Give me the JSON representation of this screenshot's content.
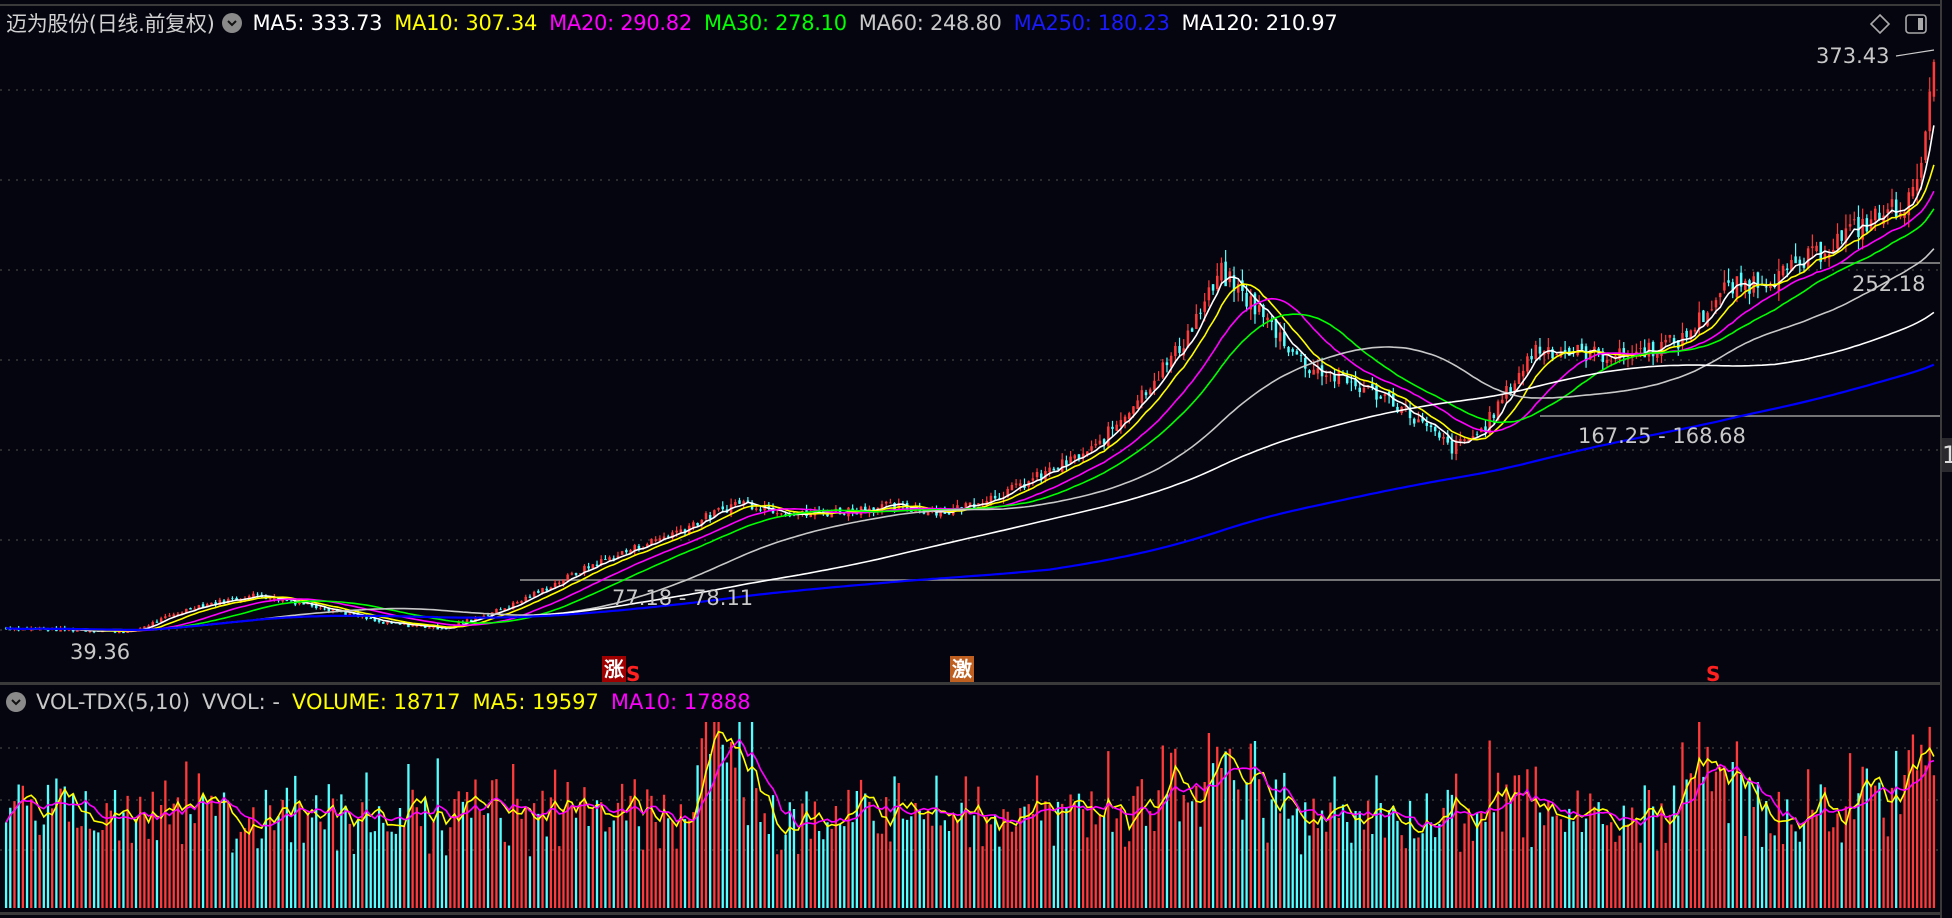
{
  "header": {
    "title": "迈为股份(日线.前复权)",
    "indicators": [
      {
        "label": "MA5: 333.73",
        "color": "#ffffff"
      },
      {
        "label": "MA10: 307.34",
        "color": "#ffff00"
      },
      {
        "label": "MA20: 290.82",
        "color": "#ff00ff"
      },
      {
        "label": "MA30: 278.10",
        "color": "#00ff00"
      },
      {
        "label": "MA60: 248.80",
        "color": "#c8c8c8"
      },
      {
        "label": "MA250: 180.23",
        "color": "#0000ff"
      },
      {
        "label": "MA120: 210.97",
        "color": "#ffffff"
      }
    ],
    "tools": {
      "diamond_icon": "diamond-icon",
      "panel_icon": "panel-toggle-icon"
    }
  },
  "annotations": {
    "high_price": "373.43",
    "low_price": "39.36",
    "range_1": "77.18 - 78.11",
    "range_2": "167.25 - 168.68",
    "range_3": "252.18",
    "axis_tag": "1"
  },
  "markers": [
    {
      "text": "涨",
      "bg": "#a00000"
    },
    {
      "text": "S",
      "color": "#ff2020"
    },
    {
      "text": "激",
      "bg": "#c06020"
    },
    {
      "text": "S",
      "color": "#ff2020"
    }
  ],
  "volume": {
    "indicator_name": "VOL-TDX(5,10)",
    "vvol": "VVOL: -",
    "items": [
      {
        "label": "VOLUME: 18717",
        "color": "#ffff00"
      },
      {
        "label": "MA5: 19597",
        "color": "#ffff00"
      },
      {
        "label": "MA10: 17888",
        "color": "#ff00ff"
      }
    ]
  },
  "colors": {
    "up": "#ff3a3a",
    "down": "#54ffff",
    "background": "#05050f",
    "grid": "#3a3a3a"
  },
  "chart_data": {
    "type": "candlestick",
    "title": "迈为股份(日线.前复权)",
    "x_range": "daily bars, ~400 trading days",
    "price_path_keypoints": [
      {
        "i": 0,
        "price": 42
      },
      {
        "i": 30,
        "price": 40
      },
      {
        "i": 45,
        "price": 55
      },
      {
        "i": 60,
        "price": 62
      },
      {
        "i": 75,
        "price": 55
      },
      {
        "i": 90,
        "price": 45
      },
      {
        "i": 105,
        "price": 42
      },
      {
        "i": 120,
        "price": 55
      },
      {
        "i": 140,
        "price": 80
      },
      {
        "i": 160,
        "price": 100
      },
      {
        "i": 175,
        "price": 118
      },
      {
        "i": 190,
        "price": 110
      },
      {
        "i": 210,
        "price": 115
      },
      {
        "i": 225,
        "price": 112
      },
      {
        "i": 240,
        "price": 125
      },
      {
        "i": 260,
        "price": 150
      },
      {
        "i": 280,
        "price": 210
      },
      {
        "i": 290,
        "price": 255
      },
      {
        "i": 298,
        "price": 235
      },
      {
        "i": 310,
        "price": 200
      },
      {
        "i": 330,
        "price": 180
      },
      {
        "i": 345,
        "price": 150
      },
      {
        "i": 352,
        "price": 160
      },
      {
        "i": 365,
        "price": 210
      },
      {
        "i": 385,
        "price": 205
      },
      {
        "i": 400,
        "price": 215
      },
      {
        "i": 410,
        "price": 245
      },
      {
        "i": 425,
        "price": 255
      },
      {
        "i": 440,
        "price": 280
      },
      {
        "i": 455,
        "price": 300
      },
      {
        "i": 460,
        "price": 373
      }
    ],
    "moving_averages_last": {
      "MA5": 333.73,
      "MA10": 307.34,
      "MA20": 290.82,
      "MA30": 278.1,
      "MA60": 248.8,
      "MA120": 210.97,
      "MA250": 180.23
    },
    "high": 373.43,
    "low": 39.36,
    "volume_last": {
      "VOLUME": 18717,
      "MA5": 19597,
      "MA10": 17888
    },
    "ylim": [
      30,
      390
    ]
  }
}
